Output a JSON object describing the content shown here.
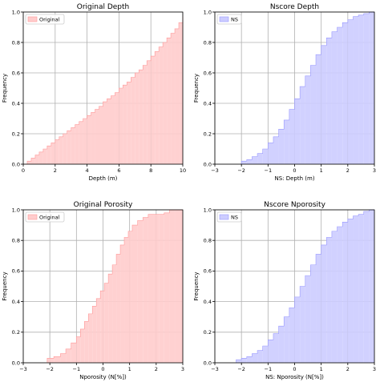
{
  "chart_data": [
    {
      "type": "step-area",
      "title": "Original Depth",
      "xlabel": "Depth (m)",
      "ylabel": "Frequency",
      "xlim": [
        0,
        10
      ],
      "ylim": [
        0,
        1.0
      ],
      "xticks": [
        "0",
        "2",
        "4",
        "6",
        "8",
        "10"
      ],
      "yticks": [
        "0.0",
        "0.2",
        "0.4",
        "0.6",
        "0.8",
        "1.0"
      ],
      "grid": true,
      "legend_position": "upper-left",
      "series": [
        {
          "name": "Original",
          "color": "#ffcccc",
          "edge": "#ff9999",
          "x": [
            0.0,
            0.25,
            0.5,
            0.75,
            1.0,
            1.25,
            1.5,
            1.75,
            2.0,
            2.25,
            2.5,
            2.75,
            3.0,
            3.25,
            3.5,
            3.75,
            4.0,
            4.25,
            4.5,
            4.75,
            5.0,
            5.25,
            5.5,
            5.75,
            6.0,
            6.25,
            6.5,
            6.75,
            7.0,
            7.25,
            7.5,
            7.75,
            8.0,
            8.25,
            8.5,
            8.75,
            9.0,
            9.25,
            9.5,
            9.75,
            10.0
          ],
          "y": [
            0.0,
            0.02,
            0.04,
            0.06,
            0.08,
            0.1,
            0.12,
            0.14,
            0.16,
            0.18,
            0.2,
            0.22,
            0.24,
            0.26,
            0.28,
            0.3,
            0.32,
            0.34,
            0.36,
            0.38,
            0.41,
            0.43,
            0.45,
            0.47,
            0.5,
            0.52,
            0.54,
            0.57,
            0.6,
            0.62,
            0.65,
            0.68,
            0.71,
            0.74,
            0.77,
            0.8,
            0.83,
            0.86,
            0.89,
            0.93,
            0.97
          ]
        }
      ]
    },
    {
      "type": "step-area",
      "title": "Nscore Depth",
      "xlabel": "NS: Depth (m)",
      "ylabel": "Frequency",
      "xlim": [
        -3,
        3
      ],
      "ylim": [
        0,
        1.0
      ],
      "xticks": [
        "−3",
        "−2",
        "−1",
        "0",
        "1",
        "2",
        "3"
      ],
      "yticks": [
        "0.0",
        "0.2",
        "0.4",
        "0.6",
        "0.8",
        "1.0"
      ],
      "grid": true,
      "legend_position": "upper-left",
      "series": [
        {
          "name": "NS",
          "color": "#ccccff",
          "edge": "#9999ff",
          "x": [
            -2.0,
            -1.8,
            -1.6,
            -1.4,
            -1.2,
            -1.0,
            -0.8,
            -0.6,
            -0.4,
            -0.2,
            0.0,
            0.2,
            0.4,
            0.6,
            0.8,
            1.0,
            1.2,
            1.4,
            1.6,
            1.8,
            2.0,
            2.2,
            2.4,
            2.6,
            2.8,
            3.0
          ],
          "y": [
            0.02,
            0.03,
            0.05,
            0.07,
            0.1,
            0.14,
            0.18,
            0.23,
            0.29,
            0.36,
            0.43,
            0.51,
            0.58,
            0.65,
            0.72,
            0.78,
            0.83,
            0.87,
            0.9,
            0.93,
            0.95,
            0.97,
            0.98,
            0.99,
            1.0,
            1.0
          ]
        }
      ]
    },
    {
      "type": "step-area",
      "title": "Original Porosity",
      "xlabel": "Nporosity (N[%])",
      "ylabel": "Frequency",
      "xlim": [
        -3,
        3
      ],
      "ylim": [
        0,
        1.0
      ],
      "xticks": [
        "−3",
        "−2",
        "−1",
        "0",
        "1",
        "2",
        "3"
      ],
      "yticks": [
        "0.0",
        "0.2",
        "0.4",
        "0.6",
        "0.8",
        "1.0"
      ],
      "grid": true,
      "legend_position": "upper-left",
      "series": [
        {
          "name": "Original",
          "color": "#ffcccc",
          "edge": "#ff9999",
          "x": [
            -2.1,
            -1.85,
            -1.6,
            -1.4,
            -1.2,
            -1.0,
            -0.85,
            -0.7,
            -0.55,
            -0.4,
            -0.25,
            -0.1,
            0.05,
            0.2,
            0.35,
            0.5,
            0.65,
            0.8,
            0.95,
            1.1,
            1.3,
            1.5,
            1.7,
            1.9,
            2.1,
            2.3,
            2.5,
            2.7,
            3.0
          ],
          "y": [
            0.03,
            0.04,
            0.06,
            0.09,
            0.13,
            0.17,
            0.22,
            0.27,
            0.32,
            0.37,
            0.42,
            0.47,
            0.52,
            0.58,
            0.64,
            0.71,
            0.77,
            0.82,
            0.86,
            0.9,
            0.93,
            0.95,
            0.97,
            0.97,
            0.97,
            0.98,
            1.0,
            1.0,
            1.0
          ]
        }
      ]
    },
    {
      "type": "step-area",
      "title": "Nscore Nporosity",
      "xlabel": "NS: Nporosity (N[%])",
      "ylabel": "Frequency",
      "xlim": [
        -3,
        3
      ],
      "ylim": [
        0,
        1.0
      ],
      "xticks": [
        "−3",
        "−2",
        "−1",
        "0",
        "1",
        "2",
        "3"
      ],
      "yticks": [
        "0.0",
        "0.2",
        "0.4",
        "0.6",
        "0.8",
        "1.0"
      ],
      "grid": true,
      "legend_position": "upper-left",
      "series": [
        {
          "name": "NS",
          "color": "#ccccff",
          "edge": "#9999ff",
          "x": [
            -2.2,
            -2.0,
            -1.8,
            -1.6,
            -1.4,
            -1.2,
            -1.0,
            -0.8,
            -0.6,
            -0.4,
            -0.2,
            0.0,
            0.2,
            0.4,
            0.6,
            0.8,
            1.0,
            1.2,
            1.4,
            1.6,
            1.8,
            2.0,
            2.2,
            2.4,
            2.6,
            2.8,
            3.0
          ],
          "y": [
            0.02,
            0.03,
            0.04,
            0.06,
            0.08,
            0.11,
            0.15,
            0.19,
            0.24,
            0.3,
            0.36,
            0.43,
            0.5,
            0.57,
            0.64,
            0.71,
            0.77,
            0.82,
            0.86,
            0.89,
            0.92,
            0.94,
            0.96,
            0.97,
            0.99,
            1.0,
            1.0
          ]
        }
      ]
    }
  ]
}
